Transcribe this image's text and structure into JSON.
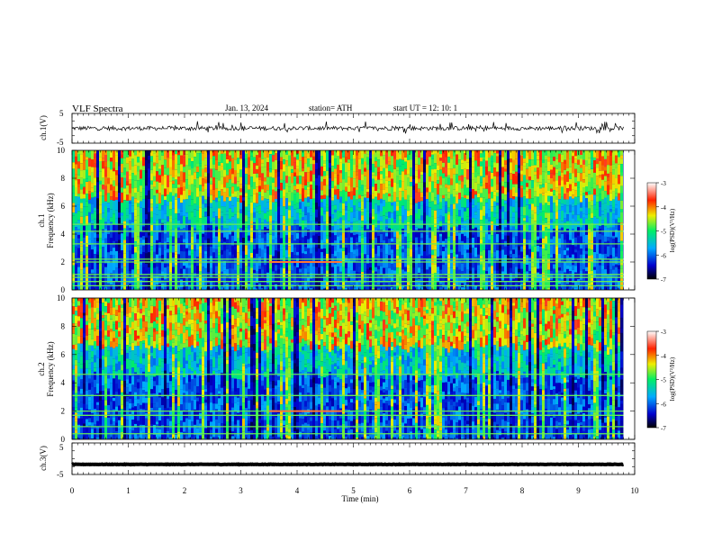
{
  "header": {
    "title": "VLF  Spectra",
    "date": "Jan. 13, 2024",
    "station": "station= ATH",
    "start": "start  UT  =    12: 10: 1"
  },
  "chart_data": [
    {
      "type": "line",
      "ylabel": "ch.1(V)",
      "ylim": [
        -5,
        5
      ],
      "yticks": [
        "5",
        "-5"
      ],
      "xlim": [
        0,
        10
      ],
      "x_end": 9.8,
      "baseline": 0,
      "amplitude_range": [
        -1.8,
        2.4
      ],
      "color": "#000000"
    },
    {
      "type": "heatmap",
      "ylabel": "ch.1",
      "ylabel2": "Frequency (kHz)",
      "ylim": [
        0,
        10
      ],
      "yticks": [
        "10",
        "8",
        "6",
        "4",
        "2",
        "0"
      ],
      "xlim": [
        0,
        10
      ],
      "colorbar": {
        "label": "log(PSD)(V²/Hz)",
        "range": [
          -7,
          -3
        ],
        "ticks": [
          "-3",
          "-4",
          "-5",
          "-6",
          "-7"
        ],
        "colors": [
          "#000000",
          "#0000cc",
          "#00aaff",
          "#00ee66",
          "#eeee00",
          "#ff2200",
          "#ffffff"
        ]
      },
      "lines_khz": [
        0.3,
        0.6,
        0.9,
        1.1,
        2.0,
        2.2,
        3.3,
        4.2,
        4.7
      ],
      "active_band_x": [
        3.5,
        4.8
      ]
    },
    {
      "type": "heatmap",
      "ylabel": "ch.2",
      "ylabel2": "Frequency (kHz)",
      "ylim": [
        0,
        10
      ],
      "yticks": [
        "10",
        "8",
        "6",
        "4",
        "2",
        "0"
      ],
      "xlim": [
        0,
        10
      ],
      "colorbar": {
        "label": "log(PSD)(V²/Hz)",
        "range": [
          -7,
          -3
        ],
        "ticks": [
          "-3",
          "-4",
          "-5",
          "-6",
          "-7"
        ],
        "colors": [
          "#000000",
          "#0000cc",
          "#00aaff",
          "#00ee66",
          "#eeee00",
          "#ff2200",
          "#ffffff"
        ]
      },
      "lines_khz": [
        0.4,
        0.9,
        1.7,
        2.0,
        3.1,
        4.6
      ],
      "active_band_x": [
        3.5,
        4.8
      ]
    },
    {
      "type": "line",
      "ylabel": "ch.3(V)",
      "ylim": [
        -5,
        5
      ],
      "yticks": [
        "5",
        "-5"
      ],
      "xlim": [
        0,
        10
      ],
      "x_end": 9.8,
      "baseline": -1.8,
      "xlabel": "Time  (min)",
      "xticks": [
        "0",
        "1",
        "2",
        "3",
        "4",
        "5",
        "6",
        "7",
        "8",
        "9",
        "10"
      ],
      "color": "#000000"
    }
  ]
}
